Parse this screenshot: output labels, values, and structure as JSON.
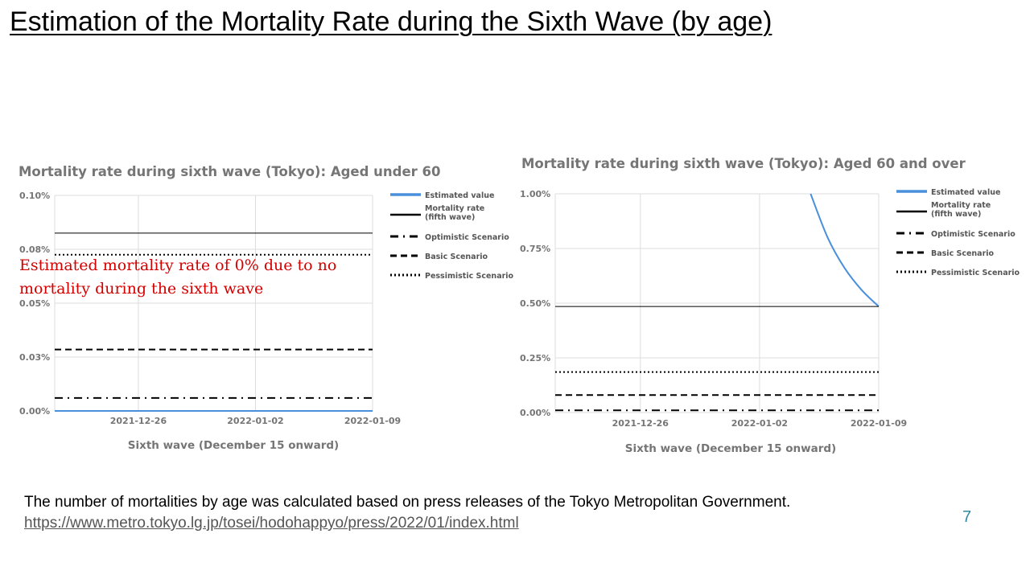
{
  "slide": {
    "title": "Estimation of the Mortality Rate during the Sixth Wave (by age)",
    "footnote": "The number of mortalities by age was calculated based on press releases of the Tokyo Metropolitan Government.",
    "link": "https://www.metro.tokyo.lg.jp/tosei/hodohappyo/press/2022/01/index.html",
    "page_number": "7"
  },
  "annotation": {
    "line1": "Estimated mortality rate of 0% due to no",
    "line2": "mortality during the sixth wave"
  },
  "colors": {
    "estimated": "#4a8fdc",
    "reference": "#000000",
    "grid": "#dddddd",
    "annotation": "#d40000",
    "page_number": "#2e8ba3"
  },
  "chart_data": [
    {
      "type": "line",
      "title": "Mortality rate during sixth wave (Tokyo): Aged under 60",
      "xlabel": "Sixth wave (December 15 onward)",
      "ylabel": "",
      "x_ticks": [
        "2021-12-26",
        "2022-01-02",
        "2022-01-09"
      ],
      "xlim": [
        "2021-12-21",
        "2022-01-09"
      ],
      "y_ticks": [
        "0.10%",
        "0.08%",
        "0.05%",
        "0.03%",
        "0.00%"
      ],
      "ylim": [
        0,
        0.1
      ],
      "grid": true,
      "legend_position": "right",
      "series": [
        {
          "name": "Estimated value",
          "style": "solid-blue",
          "points": [
            [
              "2021-12-21",
              0
            ],
            [
              "2022-01-09",
              0
            ]
          ]
        },
        {
          "name": "Mortality rate (fifth wave)",
          "style": "solid",
          "value": 0.0825
        },
        {
          "name": "Optimistic Scenario",
          "style": "dashdot",
          "value": 0.006
        },
        {
          "name": "Basic Scenario",
          "style": "dashed",
          "value": 0.0285
        },
        {
          "name": "Pessimistic Scenario",
          "style": "dotted",
          "value": 0.0725
        }
      ]
    },
    {
      "type": "line",
      "title": "Mortality rate during sixth wave (Tokyo): Aged 60 and over",
      "xlabel": "Sixth wave (December 15 onward)",
      "ylabel": "",
      "x_ticks": [
        "2021-12-26",
        "2022-01-02",
        "2022-01-09"
      ],
      "xlim": [
        "2021-12-21",
        "2022-01-09"
      ],
      "y_ticks": [
        "1.00%",
        "0.75%",
        "0.50%",
        "0.25%",
        "0.00%"
      ],
      "ylim": [
        0,
        1
      ],
      "grid": true,
      "legend_position": "right",
      "series": [
        {
          "name": "Estimated value",
          "style": "solid-blue",
          "points": [
            [
              "2022-01-05",
              1.0
            ],
            [
              "2022-01-06",
              0.8
            ],
            [
              "2022-01-07",
              0.66
            ],
            [
              "2022-01-08",
              0.56
            ],
            [
              "2022-01-09",
              0.485
            ]
          ]
        },
        {
          "name": "Mortality rate (fifth wave)",
          "style": "solid",
          "value": 0.485
        },
        {
          "name": "Optimistic Scenario",
          "style": "dashdot",
          "value": 0.01
        },
        {
          "name": "Basic Scenario",
          "style": "dashed",
          "value": 0.08
        },
        {
          "name": "Pessimistic Scenario",
          "style": "dotted",
          "value": 0.185
        }
      ]
    }
  ]
}
